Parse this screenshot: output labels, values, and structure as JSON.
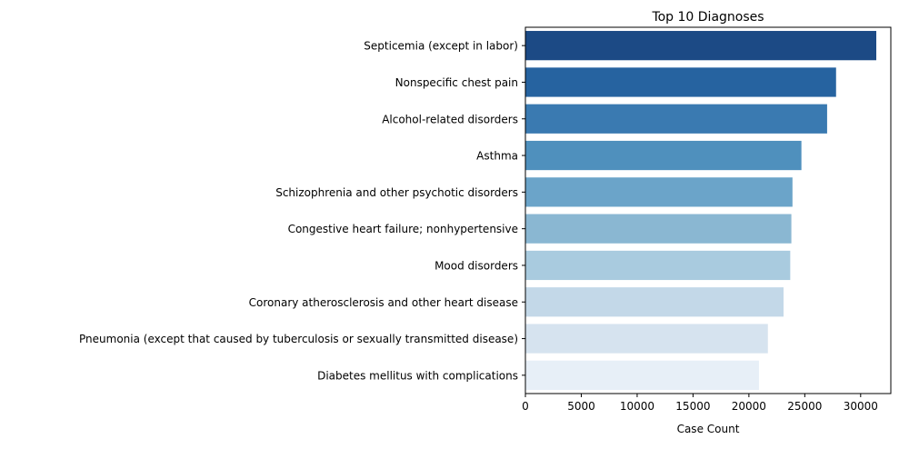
{
  "chart_data": {
    "type": "bar",
    "orientation": "horizontal",
    "title": "Top 10 Diagnoses",
    "xlabel": "Case Count",
    "ylabel": "",
    "xlim": [
      0,
      32700
    ],
    "xticks": [
      0,
      5000,
      10000,
      15000,
      20000,
      25000,
      30000
    ],
    "grid": false,
    "categories": [
      "Septicemia (except in labor)",
      "Nonspecific chest pain",
      "Alcohol-related disorders",
      "Asthma",
      "Schizophrenia and other psychotic disorders",
      "Congestive heart failure; nonhypertensive",
      "Mood disorders",
      "Coronary atherosclerosis and other heart disease",
      "Pneumonia (except that caused by tuberculosis or sexually transmitted disease)",
      "Diabetes mellitus with complications"
    ],
    "values": [
      31400,
      27800,
      27000,
      24700,
      23900,
      23800,
      23700,
      23100,
      21700,
      20900
    ],
    "colors": [
      "#1c4a85",
      "#2663a0",
      "#3a7ab1",
      "#4f90bd",
      "#6ba4c9",
      "#8ab7d2",
      "#a9cbdf",
      "#c3d8e8",
      "#d6e3ef",
      "#e7eff7"
    ]
  }
}
